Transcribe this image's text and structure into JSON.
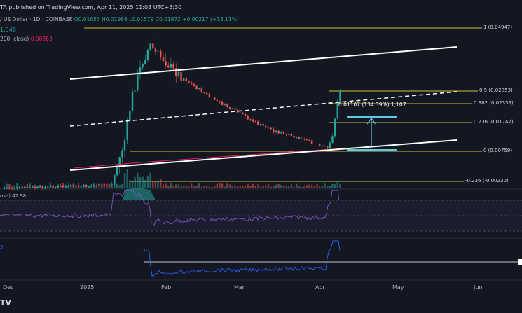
{
  "header": {
    "publish_text": "TA published on TradingView.com, Apr 11, 2025 11:03 UTC+5:30"
  },
  "ohlc": {
    "symbol_text": "/ US Dollar · 1D · COINBASE",
    "open": "O0.01653",
    "high": "H0.01968",
    "low": "L0.01579",
    "close": "C0.01872",
    "change": "+0.00217 (+13.11%)"
  },
  "volume_text": "1.548",
  "ma_text": {
    "label": "200, close)",
    "value": "0.00853"
  },
  "fib_labels": [
    "1 (0.04947)",
    "0.5 (0.02853)",
    "0.382 (0.02359)",
    "0.236 (0.01747)",
    "0 (0.00759)",
    "-0.236 (-0.00230)"
  ],
  "measure_text": "0.01107 (134.39%) 1,107",
  "rsi_label": "ose) 47.98",
  "ind2_label": "5",
  "x_ticks": [
    "Dec",
    "2025",
    "Feb",
    "Mar",
    "Apr",
    "May",
    "Jun"
  ],
  "footer_logo": "TV",
  "colors": {
    "background": "#131722",
    "up": "#26a69a",
    "down": "#ef5350",
    "fib_line": "#c9c13a",
    "trend": "#ffffff",
    "measure": "#5bc8e8",
    "rsi": "#7e57c2",
    "ind2": "#2962ff",
    "ma": "#e91e63"
  },
  "chart_data": {
    "type": "candlestick",
    "interval": "1D",
    "price_scale": "log",
    "fib_levels": [
      {
        "ratio": 1,
        "price": 0.04947
      },
      {
        "ratio": 0.5,
        "price": 0.02853
      },
      {
        "ratio": 0.382,
        "price": 0.02359
      },
      {
        "ratio": 0.236,
        "price": 0.01747
      },
      {
        "ratio": 0,
        "price": 0.00759
      },
      {
        "ratio": -0.236,
        "price": -0.0023
      }
    ],
    "last_bar": {
      "open": 0.01653,
      "high": 0.01968,
      "low": 0.01579,
      "close": 0.01872,
      "change": 0.00217,
      "change_pct": 13.11
    },
    "ma200": 0.00853,
    "measurement": {
      "price_change": 0.01107,
      "percent": 134.39,
      "ticks": 1107
    },
    "rsi_last": 47.98,
    "close_path": [
      {
        "date": "2024-12-01",
        "close": 0.0043
      },
      {
        "date": "2025-01-05",
        "close": 0.0045
      },
      {
        "date": "2025-01-12",
        "close": 0.0046
      },
      {
        "date": "2025-01-17",
        "close": 0.009
      },
      {
        "date": "2025-01-20",
        "close": 0.018
      },
      {
        "date": "2025-01-24",
        "close": 0.03
      },
      {
        "date": "2025-01-27",
        "close": 0.038
      },
      {
        "date": "2025-01-29",
        "close": 0.034
      },
      {
        "date": "2025-02-01",
        "close": 0.031
      },
      {
        "date": "2025-02-05",
        "close": 0.026
      },
      {
        "date": "2025-02-12",
        "close": 0.021
      },
      {
        "date": "2025-02-20",
        "close": 0.017
      },
      {
        "date": "2025-03-01",
        "close": 0.014
      },
      {
        "date": "2025-03-10",
        "close": 0.0115
      },
      {
        "date": "2025-03-20",
        "close": 0.0098
      },
      {
        "date": "2025-03-30",
        "close": 0.0088
      },
      {
        "date": "2025-04-06",
        "close": 0.0081
      },
      {
        "date": "2025-04-08",
        "close": 0.0095
      },
      {
        "date": "2025-04-10",
        "close": 0.0165
      },
      {
        "date": "2025-04-11",
        "close": 0.01872
      }
    ]
  }
}
